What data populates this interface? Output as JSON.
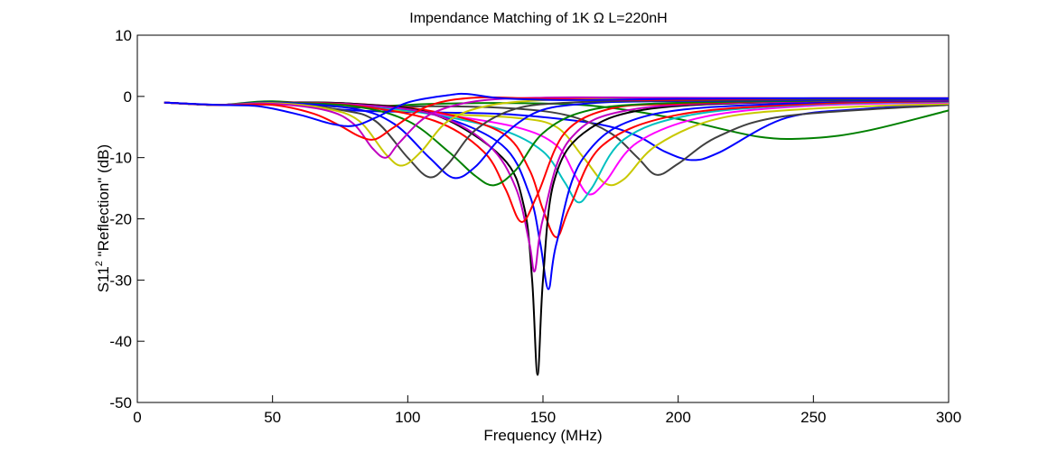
{
  "chart_data": {
    "type": "line",
    "title": "Impendance Matching of  1K Ω      L=220nH",
    "xlabel": "Frequency (MHz)",
    "ylabel_main": "S11",
    "ylabel_sup": "2",
    "ylabel_rest": " \"Reflection\" (dB)",
    "xlim": [
      0,
      300
    ],
    "ylim": [
      -50,
      10
    ],
    "xticks": [
      0,
      50,
      100,
      150,
      200,
      250,
      300
    ],
    "yticks": [
      10,
      0,
      -10,
      -20,
      -30,
      -40,
      -50
    ],
    "grid": false,
    "series": [
      {
        "color": "#008000",
        "x": [
          10,
          30,
          50,
          80,
          110,
          140,
          170,
          200,
          230,
          250,
          270,
          300
        ],
        "y": [
          -1,
          -1.4,
          -0.8,
          -1.7,
          -1.2,
          -1.1,
          -1.6,
          -3.7,
          -6.6,
          -6.8,
          -5.6,
          -2.3
        ]
      },
      {
        "color": "#0000ff",
        "x": [
          10,
          30,
          50,
          80,
          110,
          140,
          170,
          185,
          195,
          205,
          215,
          240,
          270,
          300
        ],
        "y": [
          -1,
          -1.4,
          -1.1,
          -2.3,
          -2.6,
          -3.0,
          -4.5,
          -6.5,
          -9.0,
          -10.4,
          -9.2,
          -3.5,
          -2.0,
          -1.3
        ]
      },
      {
        "color": "#404040",
        "x": [
          10,
          30,
          50,
          80,
          110,
          140,
          160,
          175,
          185,
          192,
          200,
          215,
          240,
          300
        ],
        "y": [
          -1,
          -1.4,
          -1.0,
          -1.8,
          -1.6,
          -2.0,
          -3.2,
          -6.0,
          -10.0,
          -12.8,
          -11.0,
          -6.5,
          -3.2,
          -1.4
        ]
      },
      {
        "color": "#c8c800",
        "x": [
          10,
          30,
          50,
          80,
          110,
          140,
          155,
          165,
          173,
          180,
          192,
          215,
          250,
          300
        ],
        "y": [
          -1,
          -1.4,
          -1.0,
          -1.6,
          -2.8,
          -3.5,
          -5.0,
          -10.0,
          -14.2,
          -13.5,
          -8.0,
          -3.6,
          -2.0,
          -1.2
        ]
      },
      {
        "color": "#ff00ff",
        "x": [
          10,
          30,
          50,
          80,
          110,
          140,
          155,
          162,
          167,
          173,
          185,
          210,
          250,
          300
        ],
        "y": [
          -1,
          -1.4,
          -1.0,
          -1.5,
          -2.8,
          -5.0,
          -8.0,
          -13.0,
          -16.0,
          -14.0,
          -7.5,
          -3.3,
          -1.5,
          -1.0
        ]
      },
      {
        "color": "#00c0c0",
        "x": [
          10,
          30,
          50,
          80,
          110,
          135,
          150,
          158,
          163,
          168,
          180,
          205,
          250,
          300
        ],
        "y": [
          -1,
          -1.4,
          -1.0,
          -1.4,
          -3.0,
          -5.5,
          -9.0,
          -14.0,
          -17.3,
          -15.0,
          -7.0,
          -3.0,
          -1.3,
          -0.9
        ]
      },
      {
        "color": "#ff0000",
        "x": [
          10,
          30,
          50,
          80,
          110,
          135,
          145,
          150,
          155,
          160,
          172,
          200,
          250,
          300
        ],
        "y": [
          -1,
          -1.4,
          -1.0,
          -1.2,
          -2.5,
          -6.0,
          -12.0,
          -18.5,
          -23.0,
          -18.0,
          -8.0,
          -3.0,
          -1.2,
          -0.8
        ]
      },
      {
        "color": "#0000ff",
        "x": [
          10,
          30,
          50,
          80,
          110,
          135,
          145,
          149,
          152,
          155,
          165,
          190,
          250,
          300
        ],
        "y": [
          -1,
          -1.4,
          -1.0,
          -1.3,
          -3.0,
          -8.0,
          -16.0,
          -24.0,
          -31.5,
          -24.0,
          -10.0,
          -3.0,
          -1.0,
          -0.7
        ]
      },
      {
        "color": "#000000",
        "x": [
          10,
          30,
          50,
          80,
          110,
          135,
          143,
          146,
          148,
          150,
          154,
          165,
          190,
          250,
          300
        ],
        "y": [
          -1,
          -1.4,
          -1.0,
          -1.2,
          -3.0,
          -10.0,
          -18.0,
          -30.0,
          -45.5,
          -30.0,
          -14.0,
          -6.0,
          -2.0,
          -0.8,
          -0.6
        ]
      },
      {
        "color": "#c000c0",
        "x": [
          10,
          30,
          50,
          80,
          110,
          130,
          140,
          145,
          147,
          150,
          160,
          185,
          250,
          300
        ],
        "y": [
          -1,
          -1.4,
          -1.0,
          -1.3,
          -3.0,
          -8.0,
          -15.0,
          -24.0,
          -28.5,
          -20.0,
          -7.0,
          -2.0,
          -0.8,
          -0.6
        ]
      },
      {
        "color": "#ff0000",
        "x": [
          10,
          30,
          50,
          80,
          110,
          128,
          136,
          142,
          148,
          158,
          175,
          200,
          250,
          300
        ],
        "y": [
          -1,
          -1.4,
          -1.0,
          -1.5,
          -4.0,
          -9.0,
          -15.0,
          -20.5,
          -16.0,
          -6.0,
          -2.0,
          -1.2,
          -0.7,
          -0.5
        ]
      },
      {
        "color": "#008000",
        "x": [
          10,
          30,
          50,
          80,
          100,
          115,
          125,
          132,
          140,
          150,
          165,
          190,
          250,
          300
        ],
        "y": [
          -1,
          -1.4,
          -1.0,
          -1.6,
          -4.0,
          -9.0,
          -13.0,
          -14.5,
          -12.0,
          -6.0,
          -2.5,
          -1.2,
          -0.7,
          -0.5
        ]
      },
      {
        "color": "#0000ff",
        "x": [
          10,
          30,
          50,
          80,
          95,
          108,
          117,
          125,
          135,
          148,
          165,
          190,
          250,
          300
        ],
        "y": [
          -1,
          -1.4,
          -1.0,
          -2.0,
          -4.5,
          -10.0,
          -13.3,
          -11.5,
          -6.5,
          -2.5,
          -1.2,
          -0.8,
          -0.6,
          -0.5
        ]
      },
      {
        "color": "#404040",
        "x": [
          10,
          30,
          50,
          75,
          88,
          100,
          108,
          115,
          125,
          140,
          160,
          190,
          250,
          300
        ],
        "y": [
          -1,
          -1.4,
          -1.1,
          -2.2,
          -4.0,
          -10.0,
          -13.2,
          -11.0,
          -5.5,
          -2.0,
          -1.0,
          -0.7,
          -0.5,
          -0.4
        ]
      },
      {
        "color": "#c8c800",
        "x": [
          10,
          30,
          50,
          70,
          82,
          92,
          98,
          105,
          115,
          130,
          155,
          190,
          250,
          300
        ],
        "y": [
          -1,
          -1.4,
          -1.1,
          -2.0,
          -4.0,
          -9.5,
          -11.3,
          -9.0,
          -4.0,
          -1.5,
          -0.5,
          -0.3,
          -0.3,
          -0.3
        ]
      },
      {
        "color": "#c000c0",
        "x": [
          10,
          30,
          50,
          70,
          80,
          87,
          92,
          97,
          108,
          125,
          150,
          190,
          250,
          300
        ],
        "y": [
          -1,
          -1.4,
          -1.2,
          -2.3,
          -4.5,
          -8.5,
          -10.0,
          -7.5,
          -3.0,
          -0.8,
          -0.2,
          -0.2,
          -0.3,
          -0.3
        ]
      },
      {
        "color": "#ff0000",
        "x": [
          10,
          30,
          50,
          65,
          75,
          82,
          88,
          95,
          108,
          125,
          150,
          190,
          250,
          300
        ],
        "y": [
          -1,
          -1.4,
          -1.4,
          -2.8,
          -4.8,
          -6.5,
          -7.0,
          -5.0,
          -1.5,
          -0.2,
          -0.4,
          -0.6,
          -0.3,
          -0.3
        ]
      },
      {
        "color": "#0000ff",
        "x": [
          10,
          30,
          45,
          60,
          72,
          80,
          88,
          100,
          115,
          122,
          135,
          160,
          200,
          250,
          300
        ],
        "y": [
          -1,
          -1.4,
          -1.6,
          -3.0,
          -4.5,
          -4.8,
          -3.5,
          -1.0,
          0.2,
          0.4,
          -0.3,
          -0.6,
          -0.4,
          -0.3,
          -0.3
        ]
      }
    ]
  }
}
